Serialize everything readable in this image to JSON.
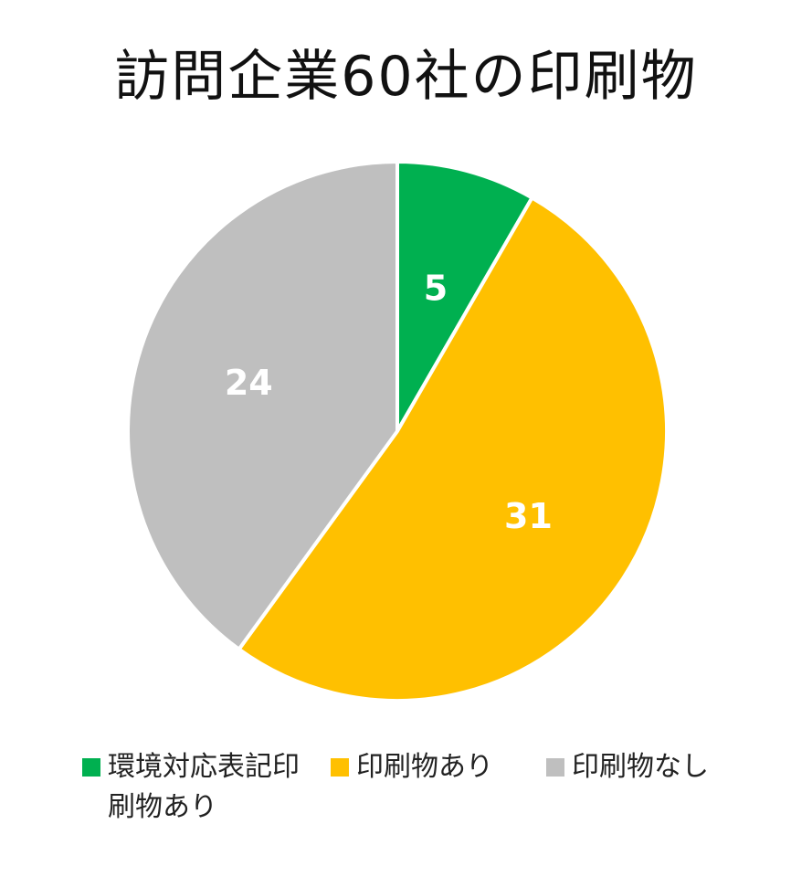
{
  "chart_data": {
    "type": "pie",
    "title": "訪問企業60社の印刷物",
    "categories": [
      "環境対応表記印刷物あり",
      "印刷物あり",
      "印刷物なし"
    ],
    "values": [
      5,
      31,
      24
    ],
    "colors": [
      "#00b050",
      "#ffc000",
      "#bfbfbf"
    ],
    "data_labels": [
      "5",
      "31",
      "24"
    ],
    "legend_position": "bottom",
    "start_angle": "12 o'clock, clockwise"
  }
}
